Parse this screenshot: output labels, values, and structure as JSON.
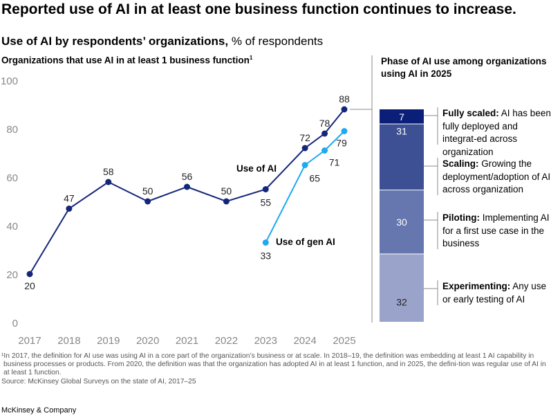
{
  "title": "Reported use of AI in at least one business function continues to increase.",
  "subtitle_bold": "Use of AI by respondents’ organizations,",
  "subtitle_rest": " % of respondents",
  "chart_data": [
    {
      "type": "line",
      "title": "Organizations that use AI in at least 1 business function",
      "title_footnote": "1",
      "x_ticks": [
        "2017",
        "2018",
        "2019",
        "2020",
        "2021",
        "2022",
        "2023",
        "2024",
        "2025"
      ],
      "y_ticks": [
        0,
        20,
        40,
        60,
        80,
        100
      ],
      "ylim": [
        0,
        100
      ],
      "grid": false,
      "series": [
        {
          "name": "Use of AI",
          "color": "#14267a",
          "x": [
            2017,
            2018,
            2019,
            2020,
            2021,
            2022,
            2023,
            2024,
            2024.5,
            2025
          ],
          "values": [
            20,
            47,
            58,
            50,
            56,
            50,
            55,
            72,
            78,
            88
          ]
        },
        {
          "name": "Use of gen AI",
          "color": "#1ea9f0",
          "x": [
            2023,
            2024,
            2024.5,
            2025
          ],
          "values": [
            33,
            65,
            71,
            79
          ]
        }
      ]
    },
    {
      "type": "bar",
      "stacked": true,
      "title": "Phase of AI use among organizations using AI in 2025",
      "segments": [
        {
          "label": "Fully scaled:",
          "desc": "AI has been fully deployed and integrat-ed across organization",
          "value": 7,
          "color": "#0c1f78"
        },
        {
          "label": "Scaling:",
          "desc": "Growing the deployment/adoption of AI across organization",
          "value": 31,
          "color": "#3d5093"
        },
        {
          "label": "Piloting:",
          "desc": "Implementing AI for a first use case in the business",
          "value": 30,
          "color": "#6676ae"
        },
        {
          "label": "Experimenting:",
          "desc": "Any use or early testing of AI",
          "value": 32,
          "color": "#9aa4ca"
        }
      ]
    }
  ],
  "footnote": "¹In 2017, the definition for AI use was using AI in a core part of the organization’s business or at scale. In 2018–19, the definition was embedding at least 1 AI capability in business processes or products. From 2020, the definition was that the organization has adopted AI in at least 1 function, and in 2025, the defini-tion was regular use of AI in at least 1 function.",
  "source": "Source: McKinsey Global Surveys on the state of AI, 2017–25",
  "brand": "McKinsey & Company"
}
